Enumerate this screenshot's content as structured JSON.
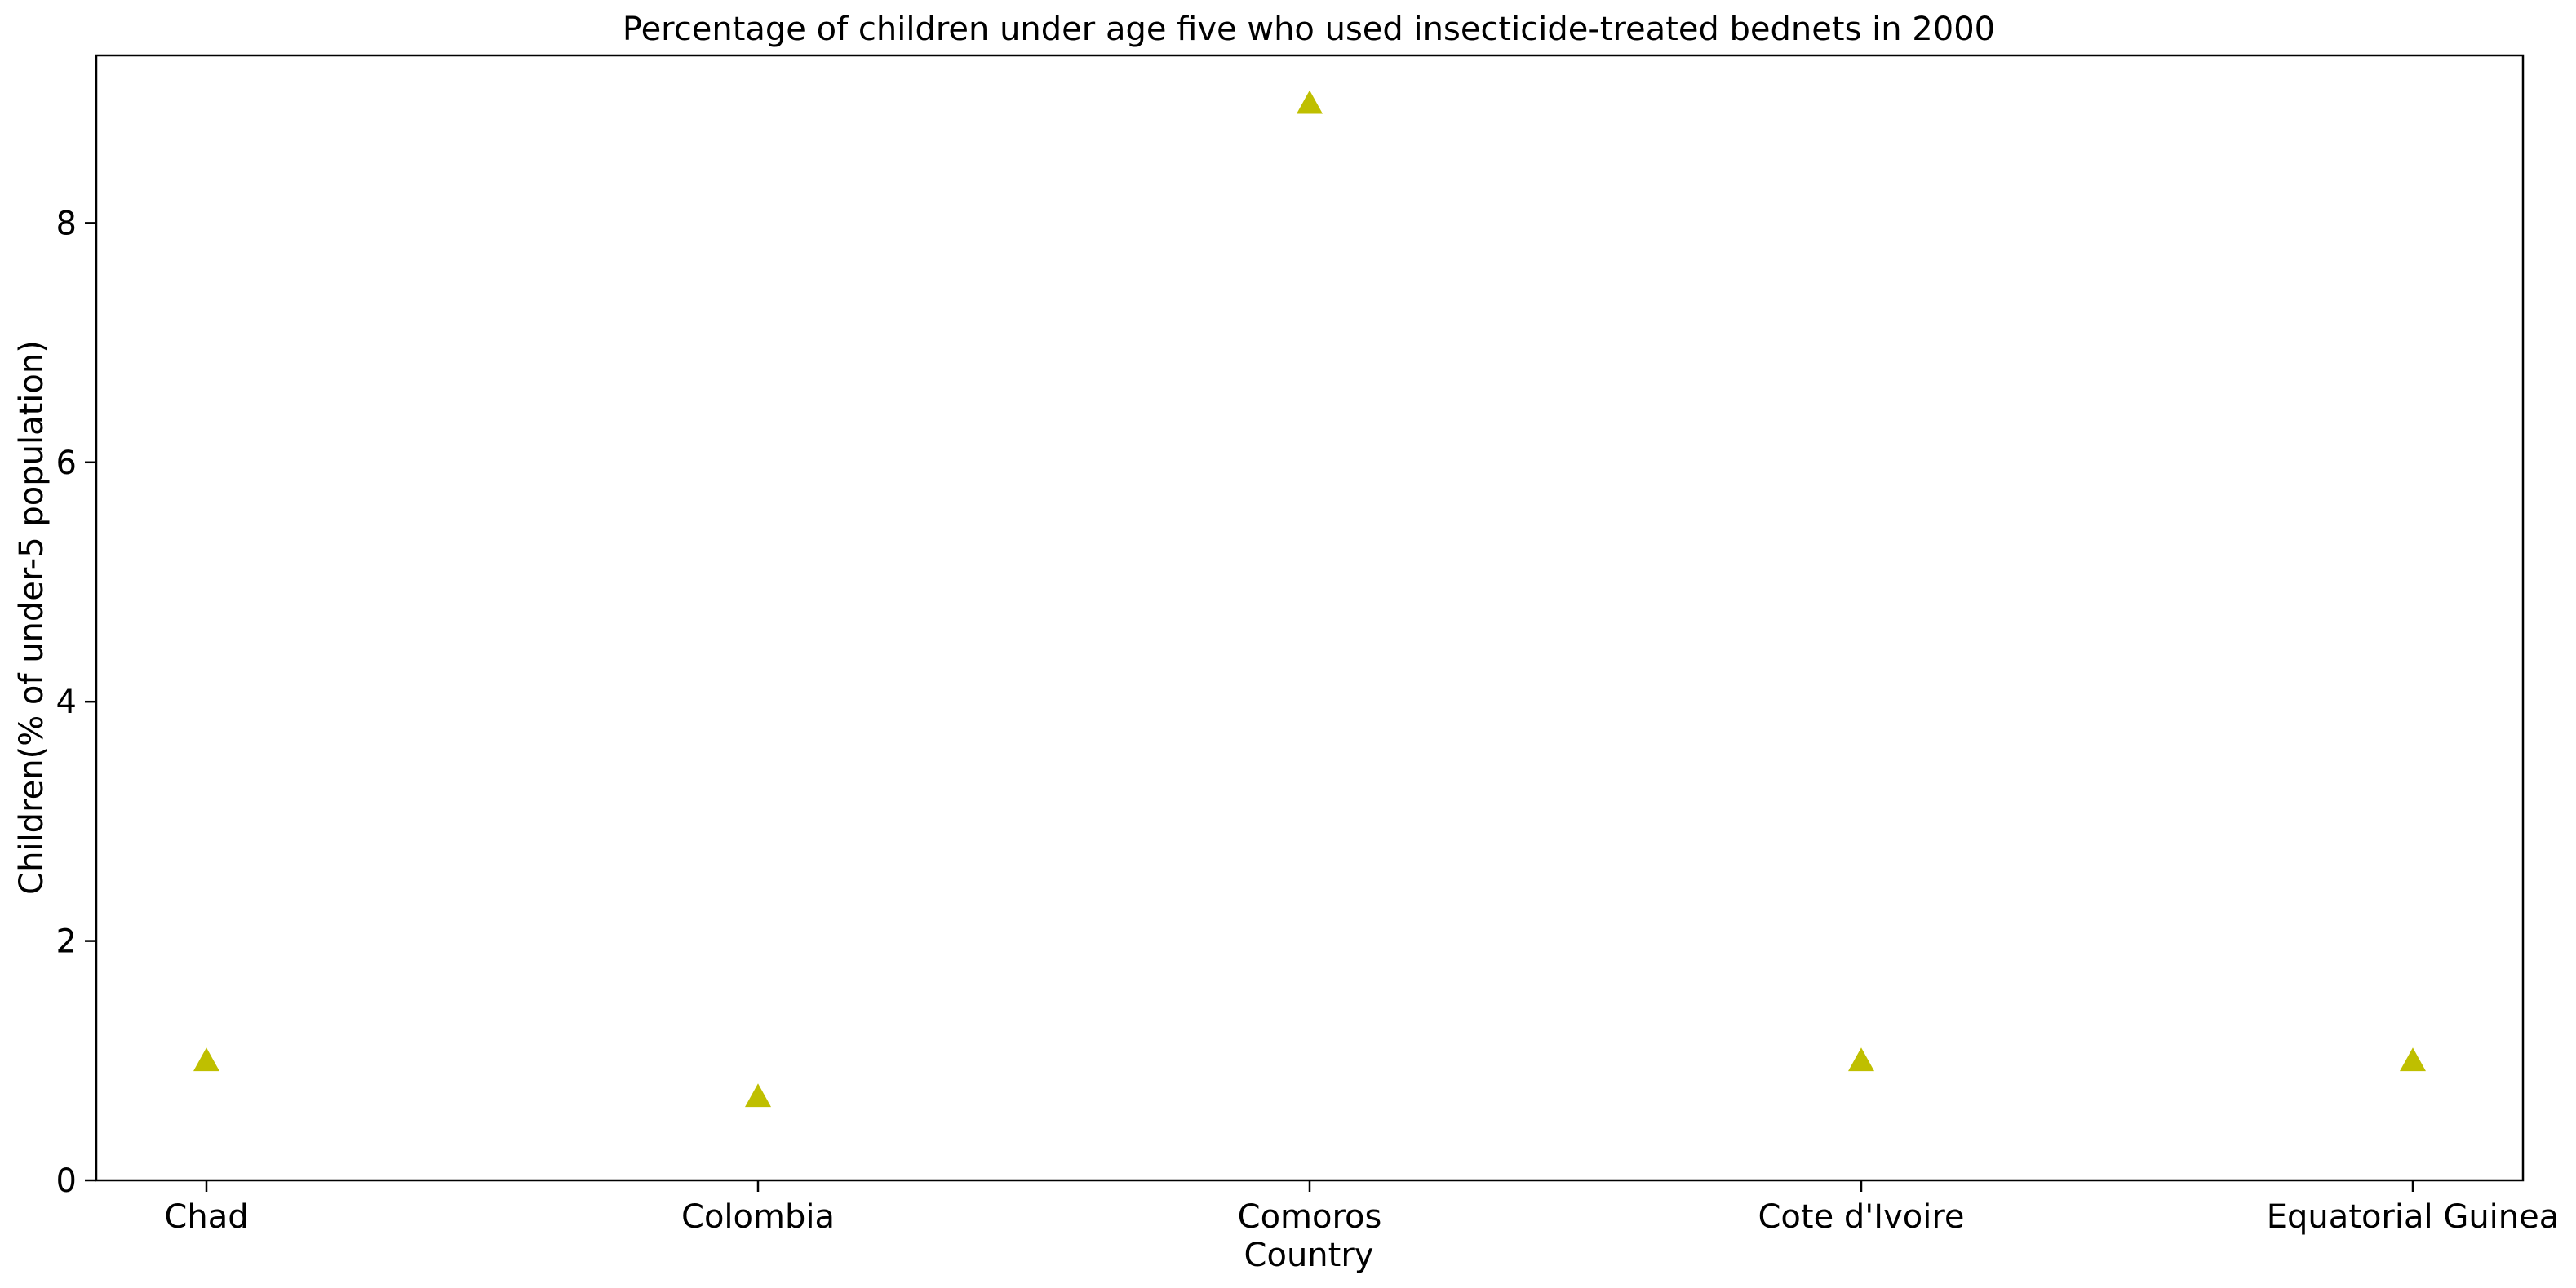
{
  "chart_data": {
    "type": "scatter",
    "title": "Percentage of children under age five who used insecticide-treated bednets in 2000",
    "xlabel": "Country",
    "ylabel": "Children(% of under-5 population)",
    "categories": [
      "Chad",
      "Colombia",
      "Comoros",
      "Cote d'Ivoire",
      "Equatorial Guinea"
    ],
    "values": [
      1.0,
      0.7,
      9.0,
      1.0,
      1.0
    ],
    "ylim": [
      0,
      9.4
    ],
    "yticks": [
      0,
      2,
      4,
      6,
      8
    ],
    "marker": "triangle",
    "marker_color": "#bfbf00",
    "grid": false,
    "legend": "none"
  }
}
